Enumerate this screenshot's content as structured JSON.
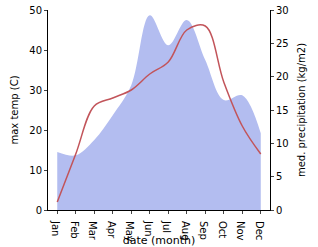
{
  "chart_data": {
    "type": "line",
    "categories": [
      "Jan",
      "Feb",
      "Mar",
      "Apr",
      "May",
      "Jun",
      "Jul",
      "Aug",
      "Sep",
      "Oct",
      "Nov",
      "Dec"
    ],
    "x_label": "date (month)",
    "y_label": "max temp (C)",
    "y2_label": "med. precipitation (kg/m2)",
    "ylim": [
      0,
      50
    ],
    "yticks": [
      0,
      10,
      20,
      30,
      40,
      50
    ],
    "y2lim": [
      0,
      30
    ],
    "y2ticks": [
      0,
      5,
      10,
      15,
      20,
      25,
      30
    ],
    "grid": false,
    "series": [
      {
        "name": "med. precipitation",
        "type": "area",
        "axis": "y2",
        "color": "#b3bdf0",
        "values": [
          8.7,
          8.2,
          10.5,
          14.2,
          18.7,
          29.2,
          24.7,
          28.5,
          22.5,
          16.5,
          17.2,
          11.5
        ]
      },
      {
        "name": "max temp",
        "type": "line",
        "color": "#c2545a",
        "values": [
          2,
          14,
          26,
          28,
          30,
          34,
          37,
          45,
          46,
          32,
          21,
          14
        ]
      }
    ]
  }
}
